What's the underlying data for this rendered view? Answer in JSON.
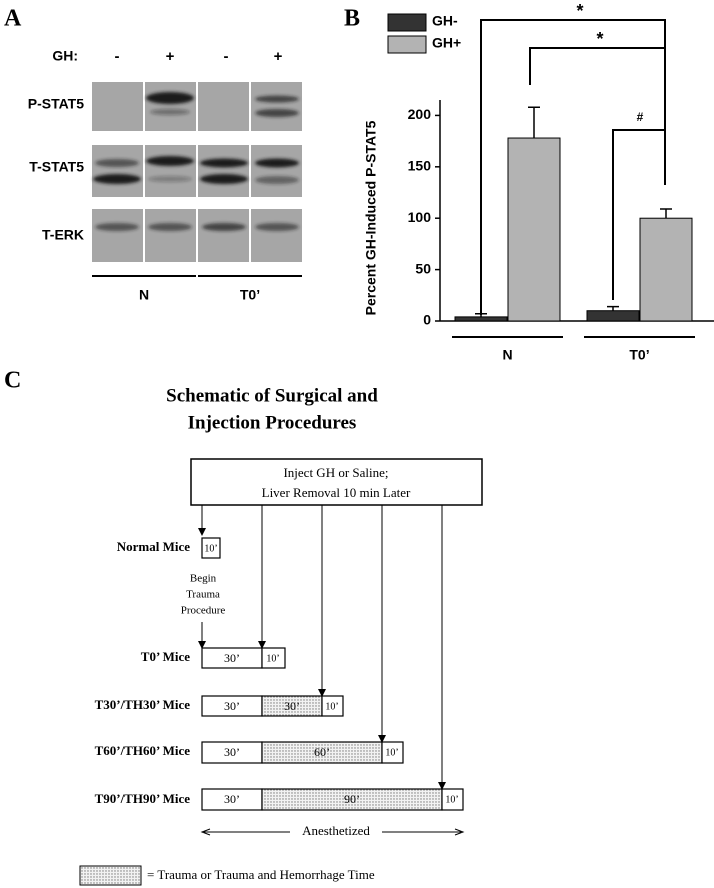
{
  "panel_a": {
    "label": "A",
    "gh_label": "GH:",
    "gh_signs": [
      "-",
      "+",
      "-",
      "+"
    ],
    "rows": [
      "P-STAT5",
      "T-STAT5",
      "T-ERK"
    ],
    "groups": [
      "N",
      "T0’"
    ]
  },
  "chart_data": {
    "type": "bar",
    "panel_label": "B",
    "y_label": "Percent GH-Induced P-STAT5",
    "categories": [
      "N",
      "T0’"
    ],
    "series": [
      {
        "name": "GH-",
        "color": "#333333",
        "values": [
          4,
          10
        ],
        "errors": [
          3,
          4
        ]
      },
      {
        "name": "GH+",
        "color": "#b3b3b3",
        "values": [
          178,
          100
        ],
        "errors": [
          30,
          9
        ]
      }
    ],
    "ylim": [
      0,
      215
    ],
    "yticks": [
      0,
      50,
      100,
      150,
      200
    ],
    "annotations": [
      "*",
      "*",
      "#"
    ]
  },
  "panel_c": {
    "label": "C",
    "title": [
      "Schematic of Surgical and",
      "Injection Procedures"
    ],
    "injection": [
      "Inject GH or Saline;",
      "Liver Removal  10 min  Later"
    ],
    "begin": [
      "Begin",
      "Trauma",
      "Procedure"
    ],
    "rows": [
      {
        "label": "Normal Mice",
        "segments": [
          "10’"
        ]
      },
      {
        "label": "T0’ Mice",
        "segments": [
          "30’",
          "10’"
        ]
      },
      {
        "label": "T30’/TH30’ Mice",
        "segments": [
          "30’",
          "30’",
          "10’"
        ]
      },
      {
        "label": "T60’/TH60’ Mice",
        "segments": [
          "30’",
          "60’",
          "10’"
        ]
      },
      {
        "label": "T90’/TH90’ Mice",
        "segments": [
          "30’",
          "90’",
          "10’"
        ]
      }
    ],
    "anesthetized": "Anesthetized",
    "legend": "= Trauma or Trauma and Hemorrhage Time"
  }
}
